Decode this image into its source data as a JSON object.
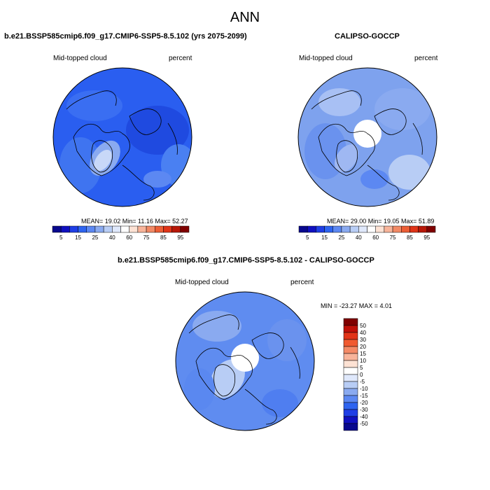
{
  "title": "ANN",
  "panels": [
    {
      "id": "model",
      "title": "b.e21.BSSP585cmip6.f09_g17.CMIP6-SSP5-8.5.102 (yrs 2075-2099)",
      "left_label": "Mid-topped cloud",
      "right_label": "percent",
      "stats": "MEAN= 19.02  Min= 11.16  Max= 52.27"
    },
    {
      "id": "obs",
      "title": "CALIPSO-GOCCP",
      "left_label": "Mid-topped cloud",
      "right_label": "percent",
      "stats": "MEAN= 29.00  Min= 19.05  Max= 51.89"
    },
    {
      "id": "diff",
      "title": "b.e21.BSSP585cmip6.f09_g17.CMIP6-SSP5-8.5.102 - CALIPSO-GOCCP",
      "left_label": "Mid-topped cloud",
      "right_label": "percent",
      "stats": "MIN = -23.27 MAX =   4.01"
    }
  ],
  "colorbar_abs": {
    "colors": [
      "#08088e",
      "#1010c0",
      "#1f3ee6",
      "#2e64f0",
      "#5c88f2",
      "#8aaaf0",
      "#b8cdf5",
      "#dfe8fb",
      "#ffffff",
      "#fde2d4",
      "#f8b49a",
      "#f28a66",
      "#ec5e36",
      "#e03418",
      "#b81808",
      "#800000"
    ],
    "labels": [
      "5",
      "15",
      "25",
      "40",
      "60",
      "75",
      "85",
      "95"
    ]
  },
  "colorbar_diff": {
    "colors": [
      "#800000",
      "#c01008",
      "#e23418",
      "#f05a30",
      "#f48a66",
      "#f8b49a",
      "#fde2d4",
      "#ffffff",
      "#dfe8fb",
      "#b8cdf5",
      "#8aaaf0",
      "#5c88f2",
      "#2e64f0",
      "#1f3ee6",
      "#1010c0",
      "#08088e"
    ],
    "labels": [
      "50",
      "40",
      "30",
      "20",
      "15",
      "10",
      "5",
      "0",
      "-5",
      "-10",
      "-15",
      "-20",
      "-30",
      "-40",
      "-50"
    ]
  },
  "map_colors": {
    "model_base": "#2a5ef0",
    "obs_base": "#7ea2ee",
    "diff_base": "#5f8cf0",
    "land_line": "#000000"
  }
}
